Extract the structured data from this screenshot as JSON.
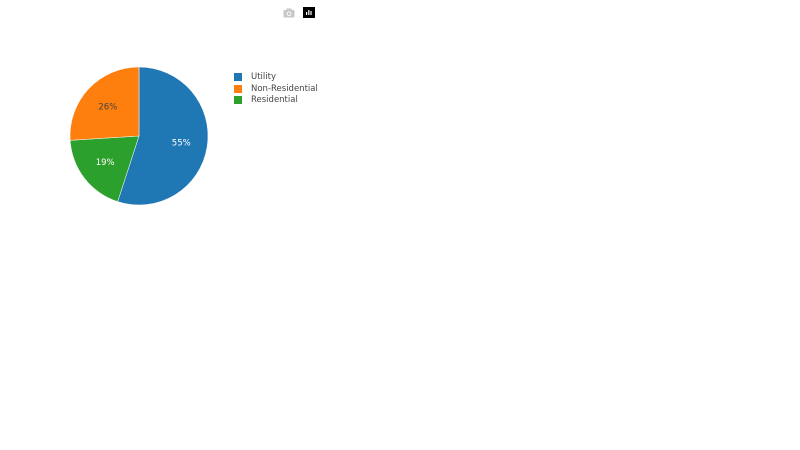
{
  "modebar": {
    "camera_icon": "camera-icon",
    "plotly_logo": "plotly-logo-icon"
  },
  "chart_data": {
    "type": "pie",
    "labels": [
      "Utility",
      "Residential",
      "Non-Residential"
    ],
    "values": [
      55,
      19,
      26
    ],
    "text_labels": [
      "55%",
      "19%",
      "26%"
    ],
    "colors": [
      "#1f77b4",
      "#2ca02c",
      "#ff7f0e"
    ],
    "text_colors": [
      "#ffffff",
      "#ffffff",
      "#444444"
    ],
    "direction": "clockwise",
    "rotation_start": "top",
    "legend": {
      "position": "right",
      "items": [
        {
          "label": "Utility",
          "color": "#1f77b4"
        },
        {
          "label": "Non-Residential",
          "color": "#ff7f0e"
        },
        {
          "label": "Residential",
          "color": "#2ca02c"
        }
      ]
    }
  }
}
